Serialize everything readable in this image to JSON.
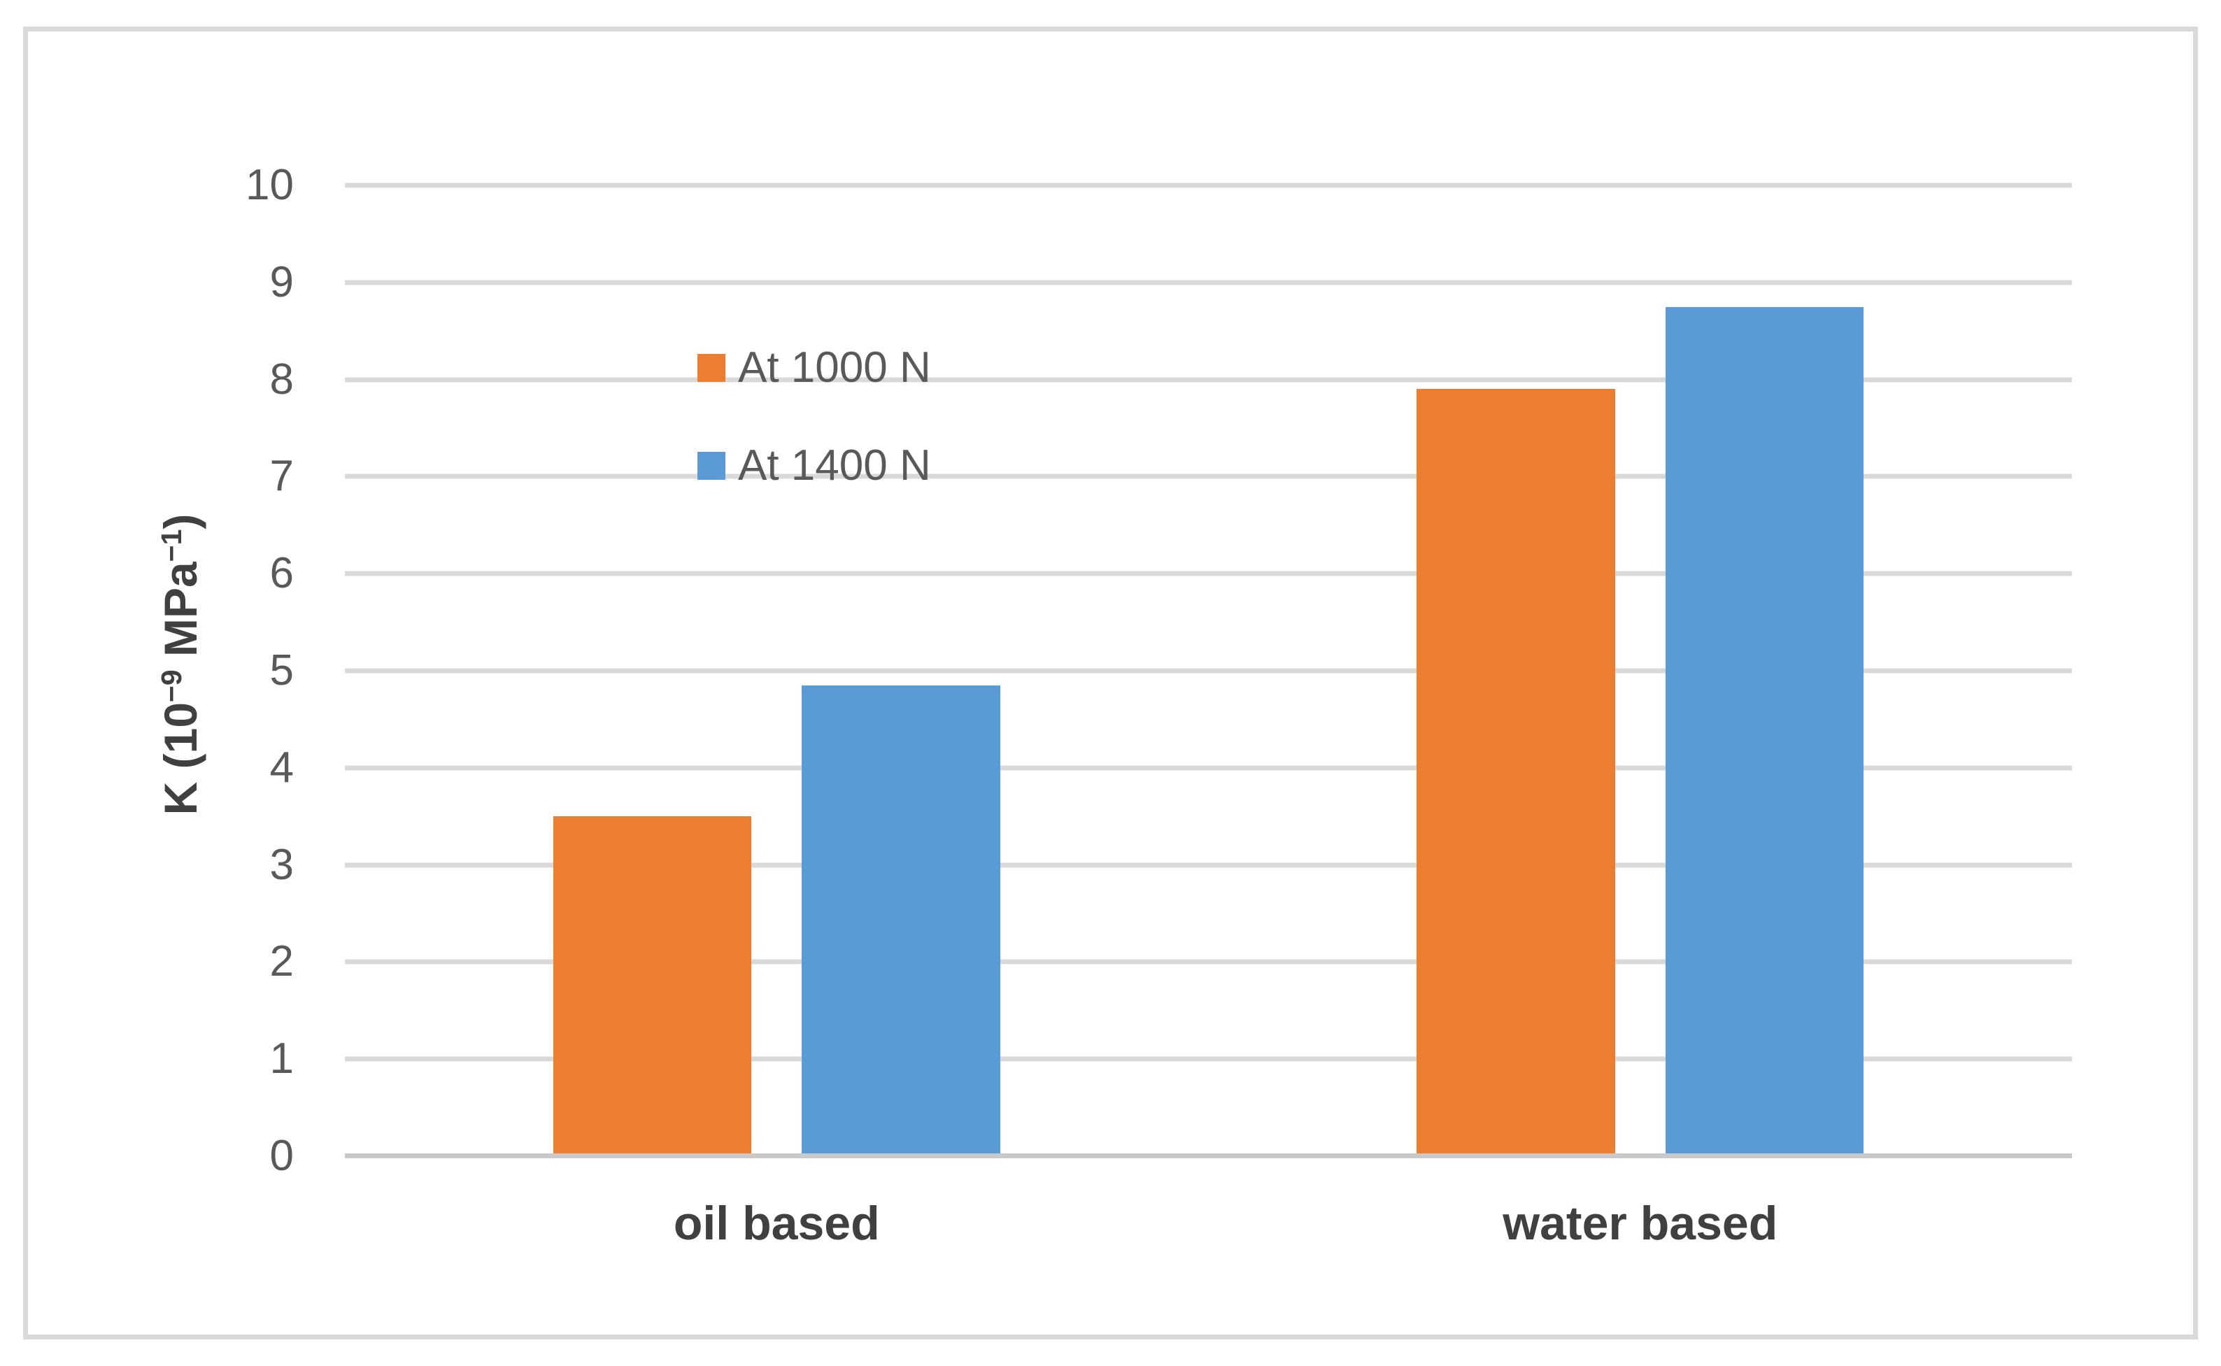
{
  "chart_data": {
    "type": "bar",
    "categories": [
      "oil based",
      "water based"
    ],
    "series": [
      {
        "name": "At 1000 N",
        "color": "#ED7D31",
        "values": [
          3.5,
          7.9
        ]
      },
      {
        "name": "At 1400 N",
        "color": "#5B9BD5",
        "values": [
          4.85,
          8.75
        ]
      }
    ],
    "title": "",
    "xlabel": "",
    "ylabel": "K (10⁻⁹ MPa⁻¹)",
    "ylabel_parts": {
      "prefix": "K (10",
      "sup1": "−9",
      "mid": " MPa",
      "sup2": "−1",
      "suffix": ")"
    },
    "ylim": [
      0,
      10
    ],
    "ytick_step": 1,
    "grid": true,
    "legend_position": "inside-upper-left"
  },
  "style": {
    "gridline_color": "#D9D9D9",
    "axis_line_color": "#C9C9C9",
    "tick_text_color": "#595959",
    "label_text_color": "#404040",
    "frame_border_color": "#D9D9D9",
    "background_color": "#FFFFFF"
  }
}
